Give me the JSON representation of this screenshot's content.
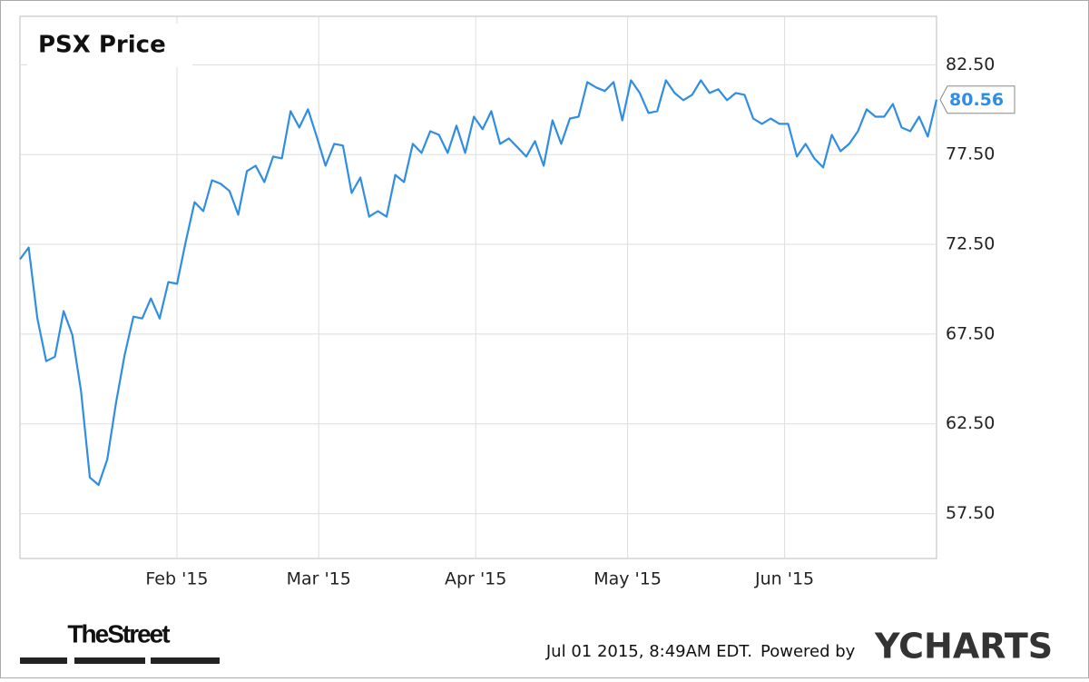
{
  "chart_data": {
    "type": "line",
    "title": "PSX Price",
    "xlim": [
      "2015-01",
      "2015-07"
    ],
    "xticks": [
      {
        "value": "2015-02",
        "label": "Feb '15"
      },
      {
        "value": "2015-03",
        "label": "Mar '15"
      },
      {
        "value": "2015-04",
        "label": "Apr '15"
      },
      {
        "value": "2015-05",
        "label": "May '15"
      },
      {
        "value": "2015-06",
        "label": "Jun '15"
      }
    ],
    "ylim": [
      55,
      85.2
    ],
    "yticks": [
      {
        "value": 57.5,
        "label": "57.50"
      },
      {
        "value": 62.5,
        "label": "62.50"
      },
      {
        "value": 67.5,
        "label": "67.50"
      },
      {
        "value": 72.5,
        "label": "72.50"
      },
      {
        "value": 77.5,
        "label": "77.50"
      },
      {
        "value": 82.5,
        "label": "82.50"
      }
    ],
    "grid": true,
    "series": [
      {
        "name": "PSX Price",
        "color": "#2f8de4",
        "values": [
          71.67,
          72.32,
          68.37,
          65.99,
          66.24,
          68.78,
          67.46,
          64.32,
          59.51,
          59.1,
          60.52,
          63.66,
          66.35,
          68.47,
          68.37,
          69.49,
          68.37,
          70.4,
          70.3,
          72.68,
          74.85,
          74.35,
          76.07,
          75.87,
          75.47,
          74.15,
          76.58,
          76.88,
          75.97,
          77.39,
          77.29,
          79.92,
          79.01,
          80.02,
          78.5,
          76.88,
          78.1,
          78.0,
          75.36,
          76.22,
          74.04,
          74.35,
          74.04,
          76.37,
          75.97,
          78.1,
          77.59,
          78.8,
          78.6,
          77.59,
          79.11,
          77.59,
          79.61,
          78.91,
          79.92,
          78.1,
          78.4,
          77.9,
          77.39,
          78.25,
          76.88,
          79.41,
          78.1,
          79.51,
          79.61,
          81.54,
          81.24,
          81.04,
          81.54,
          79.41,
          81.64,
          80.93,
          79.82,
          79.92,
          81.64,
          80.93,
          80.53,
          80.83,
          81.64,
          80.93,
          81.14,
          80.53,
          80.93,
          80.83,
          79.51,
          79.21,
          79.51,
          79.21,
          79.21,
          77.39,
          78.1,
          77.29,
          76.78,
          78.6,
          77.69,
          78.1,
          78.8,
          80.02,
          79.61,
          79.61,
          80.32,
          79.01,
          78.8,
          79.61,
          78.5,
          80.56
        ]
      }
    ]
  },
  "footer": {
    "brand": "TheStreet",
    "timestamp": "Jul 01 2015, 8:49AM EDT.",
    "powered_by": "Powered by",
    "provider": "YCHARTS"
  }
}
